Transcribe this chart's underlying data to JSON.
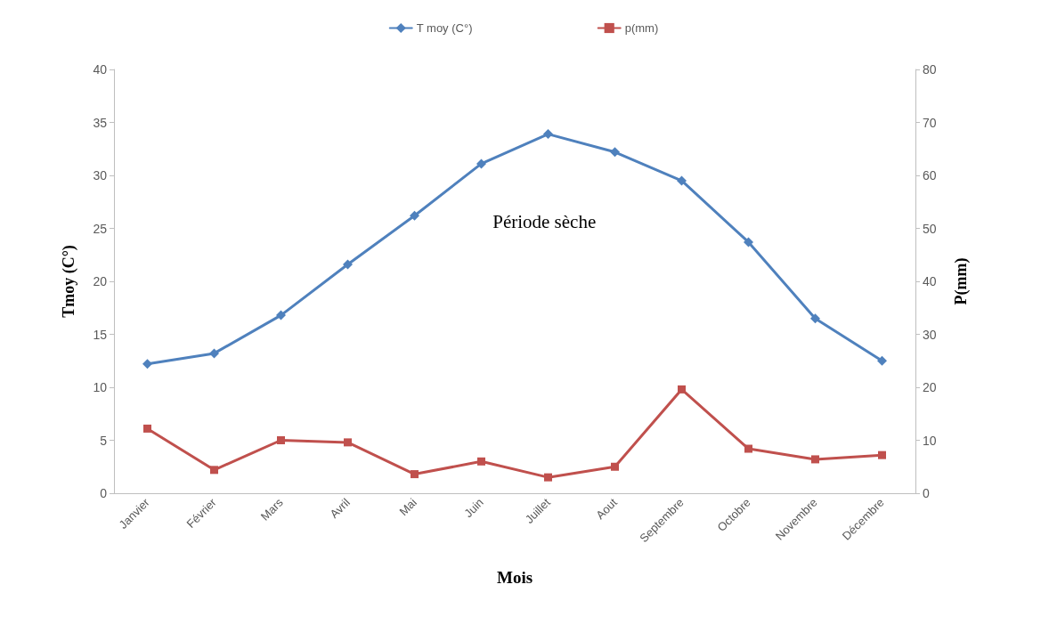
{
  "chart_data": {
    "type": "line",
    "xlabel": "Mois",
    "ylabel": "Tmoy (C°)",
    "y2label": "P(mm)",
    "categories": [
      "Janvier",
      "Février",
      "Mars",
      "Avril",
      "Mai",
      "Juin",
      "Juillet",
      "Aout",
      "Septembre",
      "Octobre",
      "Novembre",
      "Décembre"
    ],
    "series": [
      {
        "name": "T moy (C°)",
        "color": "#4f81bd",
        "marker": "diamond",
        "values": [
          12.2,
          13.2,
          16.8,
          21.6,
          26.2,
          31.1,
          33.9,
          32.2,
          29.5,
          23.7,
          16.5,
          12.5
        ]
      },
      {
        "name": "p(mm)",
        "color": "#c0504d",
        "marker": "square",
        "axis": "y2",
        "values": [
          12.2,
          4.4,
          10,
          9.6,
          3.6,
          6,
          3,
          5,
          19.6,
          8.4,
          6.4,
          7.2
        ]
      }
    ],
    "ylim": [
      0,
      40
    ],
    "yticks": [
      0,
      5,
      10,
      15,
      20,
      25,
      30,
      35,
      40
    ],
    "y2lim": [
      0,
      80
    ],
    "y2ticks": [
      0,
      10,
      20,
      30,
      40,
      50,
      60,
      70,
      80
    ],
    "annotations": [
      "Période sèche"
    ],
    "legend": "top",
    "grid": false,
    "line_style": "solid"
  }
}
